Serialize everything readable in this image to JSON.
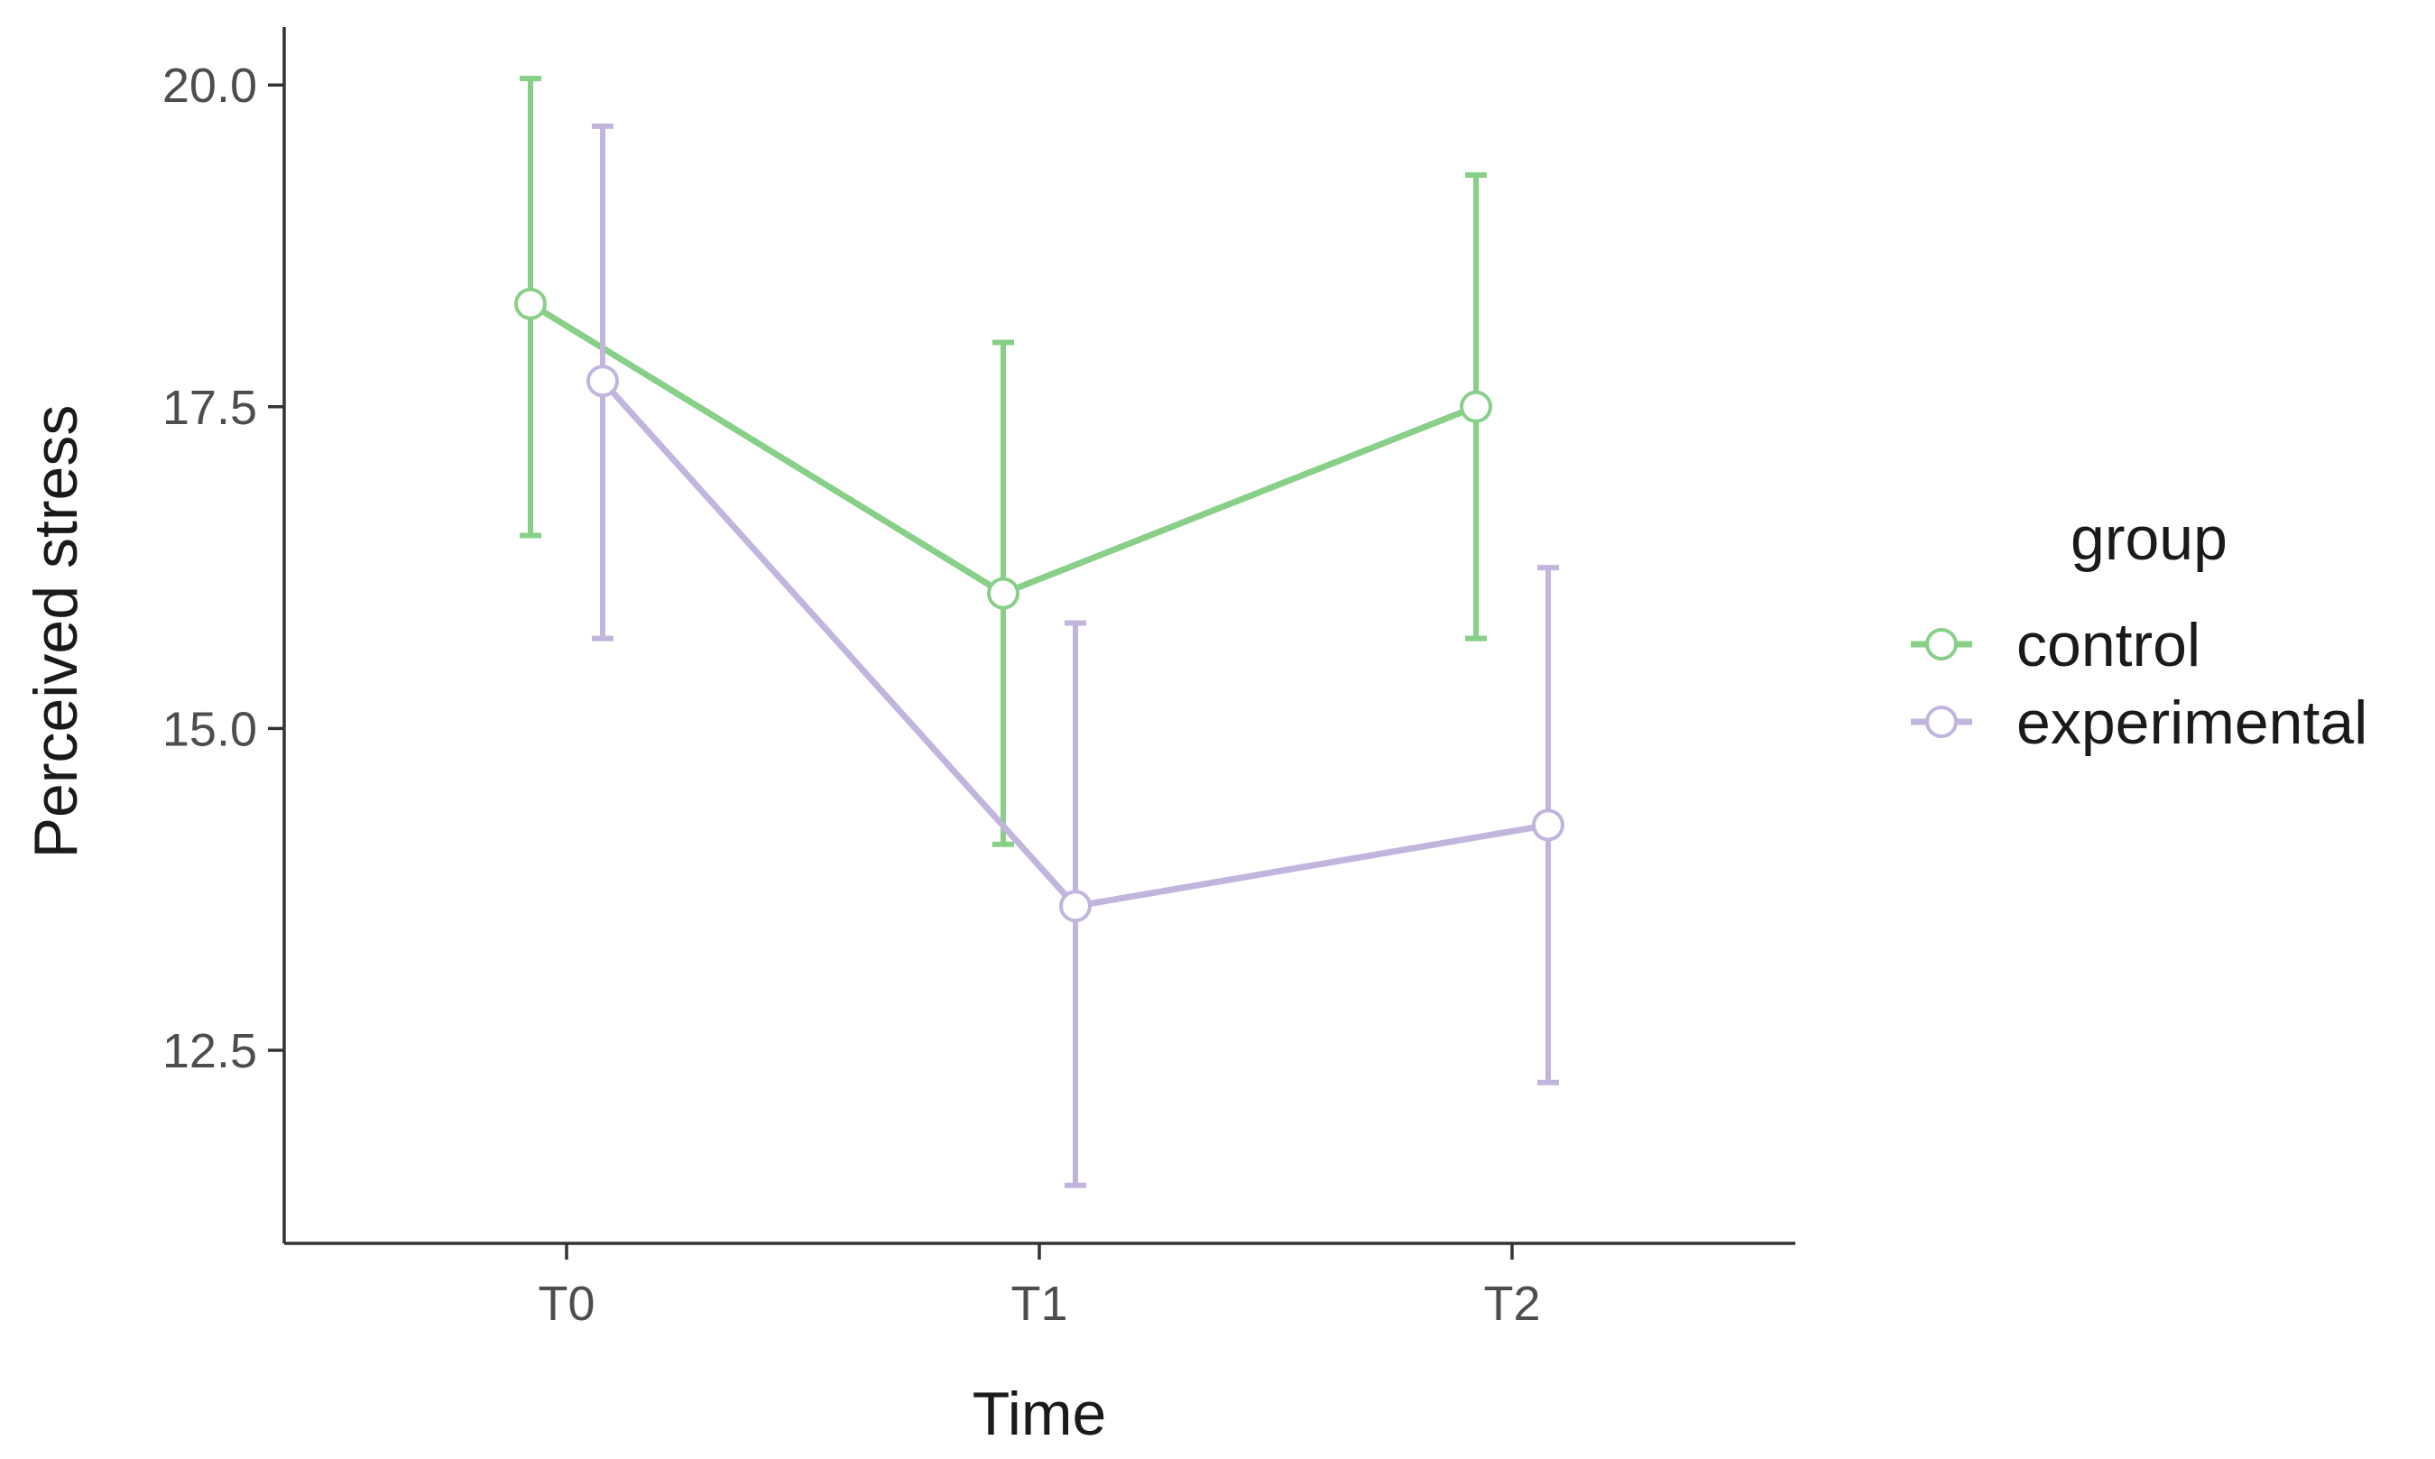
{
  "chart_data": {
    "type": "line",
    "title": "",
    "xlabel": "Time",
    "ylabel": "Perceived stress",
    "categories": [
      "T0",
      "T1",
      "T2"
    ],
    "ylim": [
      11.0,
      20.45
    ],
    "yticks": [
      12.5,
      15.0,
      17.5,
      20.0
    ],
    "ytick_labels": [
      "12.5",
      "15.0",
      "17.5",
      "20.0"
    ],
    "grid": false,
    "legend": {
      "title": "group",
      "position": "right"
    },
    "series": [
      {
        "name": "control",
        "color": "#88cf88",
        "values": [
          18.3,
          16.05,
          17.5
        ],
        "error_lower": [
          16.5,
          14.1,
          15.7
        ],
        "error_upper": [
          20.05,
          18.0,
          19.3
        ]
      },
      {
        "name": "experimental",
        "color": "#c2b5dd",
        "values": [
          17.7,
          13.62,
          14.25
        ],
        "error_lower": [
          15.7,
          11.45,
          12.25
        ],
        "error_upper": [
          19.68,
          15.82,
          16.25
        ]
      }
    ]
  }
}
